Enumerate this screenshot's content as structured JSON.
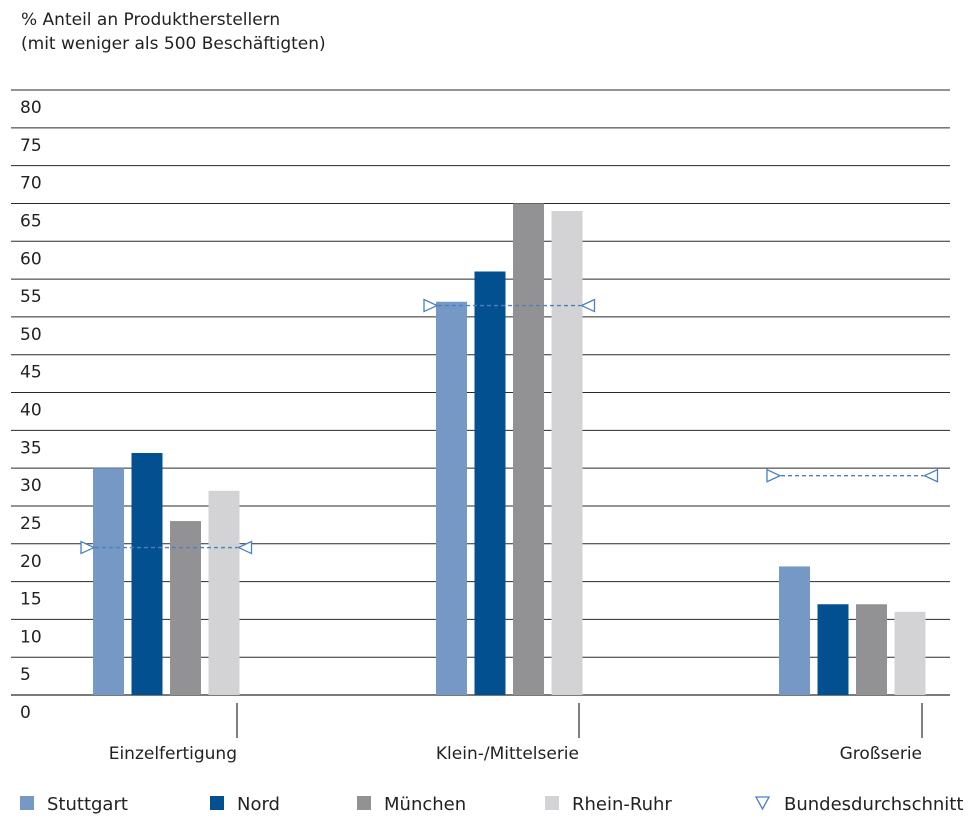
{
  "chart_data": {
    "type": "bar",
    "title_line1": "% Anteil an Produktherstellern",
    "title_line2": "(mit weniger als 500 Beschäftigten)",
    "xlabel": "",
    "ylabel": "",
    "ylim": [
      0,
      80
    ],
    "yticks": [
      0,
      5,
      10,
      15,
      20,
      25,
      30,
      35,
      40,
      45,
      50,
      55,
      60,
      65,
      70,
      75,
      80
    ],
    "grid": true,
    "legend_position": "bottom",
    "categories": [
      "Einzelfertigung",
      "Klein-/Mittelserie",
      "Großserie"
    ],
    "series": [
      {
        "name": "Stuttgart",
        "color": "#7598c4",
        "values": [
          30,
          52,
          17
        ]
      },
      {
        "name": "Nord",
        "color": "#02508f",
        "values": [
          32,
          56,
          12
        ]
      },
      {
        "name": "München",
        "color": "#929295",
        "values": [
          23,
          65,
          12
        ]
      },
      {
        "name": "Rhein-Ruhr",
        "color": "#d3d3d5",
        "values": [
          27,
          64,
          11
        ]
      }
    ],
    "average": {
      "name": "Bundesdurchschnitt",
      "color": "#4a7fc0",
      "values": [
        19.5,
        51.5,
        29
      ]
    }
  }
}
